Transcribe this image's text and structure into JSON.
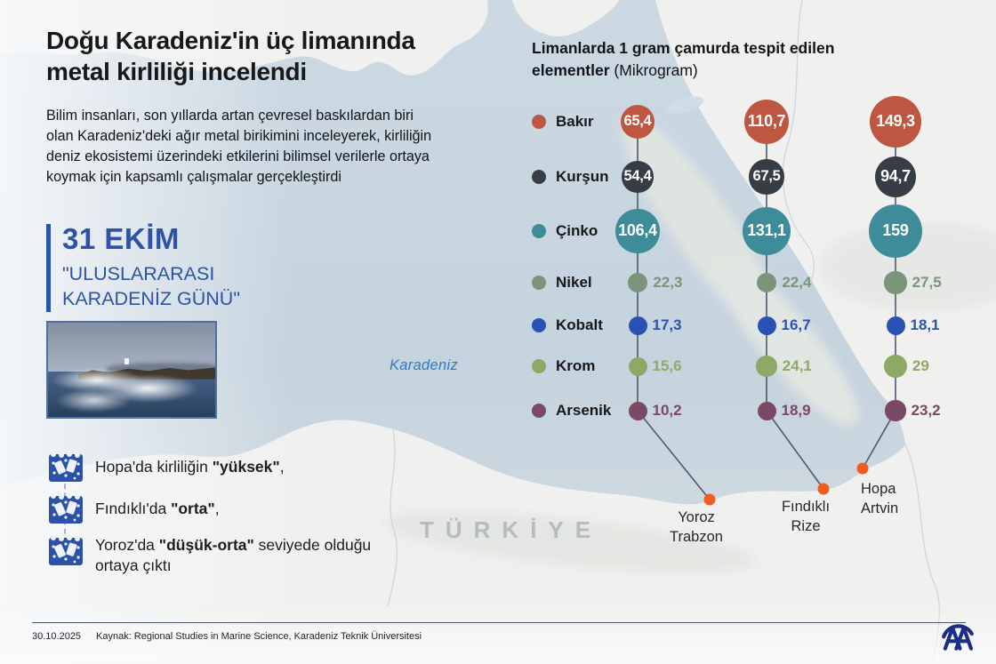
{
  "header": {
    "title": "Doğu Karadeniz'in üç limanında metal kirliliği incelendi",
    "paragraph": "Bilim insanları, son yıllarda artan çevresel baskılardan biri olan Karadeniz'deki ağır metal birikimini inceleyerek, kirliliğin deniz ekosistemi üzerindeki etkilerini bilimsel verilerle ortaya koymak için kapsamlı çalışmalar gerçekleştirdi"
  },
  "event": {
    "date": "31 EKİM",
    "name": "\"ULUSLARARASI KARADENİZ GÜNÜ\""
  },
  "findings": [
    {
      "pre": "Hopa'da kirliliğin ",
      "bold": "\"yüksek\"",
      "post": ","
    },
    {
      "pre": "Fındıklı'da ",
      "bold": "\"orta\"",
      "post": ","
    },
    {
      "pre": "Yoroz'da ",
      "bold": "\"düşük-orta\"",
      "post": " seviyede olduğu ortaya çıktı"
    }
  ],
  "map": {
    "sea_label": "Karadeniz",
    "country_label": "TÜRKİYE"
  },
  "chart_data": {
    "type": "proportional-circle",
    "title": "Limanlarda 1 gram çamurda tespit edilen elementler",
    "unit": "(Mikrogram)",
    "legend_position": "left",
    "elements": [
      {
        "name": "Bakır",
        "color": "#bd5742"
      },
      {
        "name": "Kurşun",
        "color": "#373d45"
      },
      {
        "name": "Çinko",
        "color": "#3e8c9a"
      },
      {
        "name": "Nikel",
        "color": "#7b957b"
      },
      {
        "name": "Kobalt",
        "color": "#2a51b5"
      },
      {
        "name": "Krom",
        "color": "#8caa66"
      },
      {
        "name": "Arsenik",
        "color": "#7a4a64"
      }
    ],
    "ports": [
      {
        "name": "Yoroz",
        "region": "Trabzon",
        "values": [
          65.4,
          54.4,
          106.4,
          22.3,
          17.3,
          15.6,
          10.2
        ],
        "labels": [
          "65,4",
          "54,4",
          "106,4",
          "22,3",
          "17,3",
          "15,6",
          "10,2"
        ]
      },
      {
        "name": "Fındıklı",
        "region": "Rize",
        "values": [
          110.7,
          67.5,
          131.1,
          22.4,
          16.7,
          24.1,
          18.9
        ],
        "labels": [
          "110,7",
          "67,5",
          "131,1",
          "22,4",
          "16,7",
          "24,1",
          "18,9"
        ]
      },
      {
        "name": "Hopa",
        "region": "Artvin",
        "values": [
          149.3,
          94.7,
          159,
          27.5,
          18.1,
          29,
          23.2
        ],
        "labels": [
          "149,3",
          "94,7",
          "159",
          "27,5",
          "18,1",
          "29",
          "23,2"
        ]
      }
    ],
    "port_dot_color": "#f25c21",
    "connector_color": "#4e5a6e"
  },
  "footer": {
    "date": "30.10.2025",
    "source": "Kaynak: Regional Studies in Marine Science, Karadeniz Teknik Üniversitesi",
    "agency": "AA"
  }
}
